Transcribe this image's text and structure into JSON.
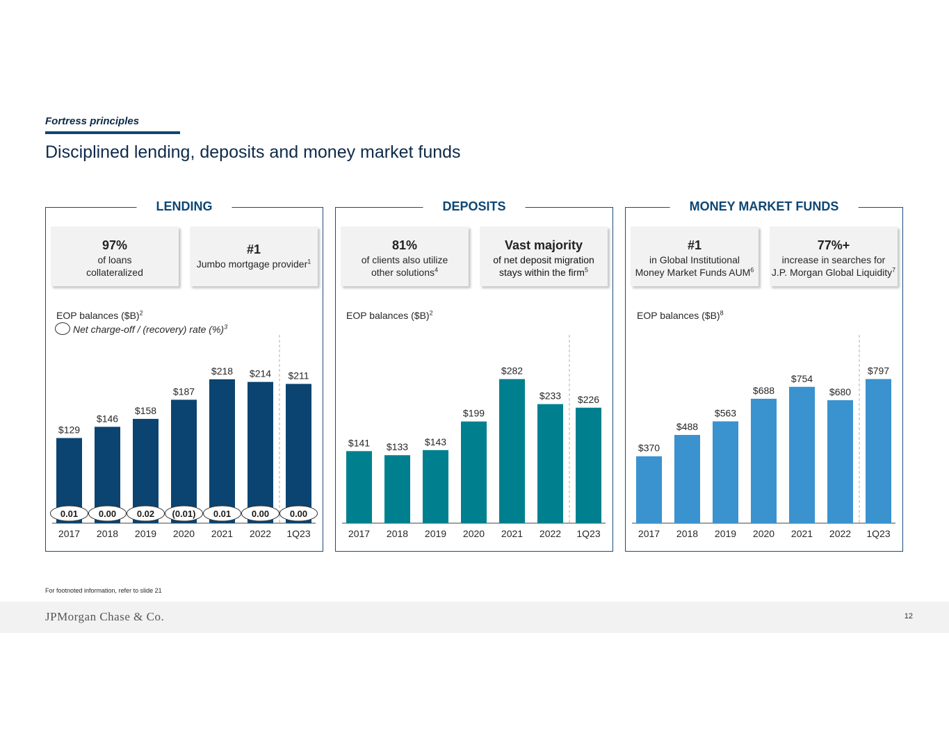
{
  "header": {
    "section": "Fortress principles",
    "title": "Disciplined lending, deposits and money market funds"
  },
  "panels": {
    "lending": {
      "title": "LENDING",
      "card1": {
        "big": "97%",
        "line1": "of loans",
        "line2": "collateralized"
      },
      "card2": {
        "big": "#1",
        "line1": "Jumbo mortgage provider",
        "sup": "1"
      },
      "eop_label": "EOP balances ($B)",
      "eop_sup": "2",
      "legend_label": "Net charge-off / (recovery) rate (%)",
      "legend_sup": "3"
    },
    "deposits": {
      "title": "DEPOSITS",
      "card1": {
        "big": "81%",
        "line1": "of clients also utilize",
        "line2": "other solutions",
        "sup": "4"
      },
      "card2": {
        "big": "Vast majority",
        "line1": "of net deposit migration",
        "line2": "stays within the firm",
        "sup": "5"
      },
      "eop_label": "EOP balances ($B)",
      "eop_sup": "2"
    },
    "mmf": {
      "title": "MONEY MARKET FUNDS",
      "card1": {
        "big": "#1",
        "line1": "in Global Institutional",
        "line2": "Money Market Funds AUM",
        "sup": "6"
      },
      "card2": {
        "big": "77%+",
        "line1": "increase in searches for",
        "line2": "J.P. Morgan Global Liquidity",
        "sup": "7"
      },
      "eop_label": "EOP balances ($B)",
      "eop_sup": "8"
    }
  },
  "chart_data": [
    {
      "type": "bar",
      "name": "lending",
      "categories": [
        "2017",
        "2018",
        "2019",
        "2020",
        "2021",
        "2022",
        "1Q23"
      ],
      "values": [
        129,
        146,
        158,
        187,
        218,
        214,
        211
      ],
      "value_labels": [
        "$129",
        "$146",
        "$158",
        "$187",
        "$218",
        "$214",
        "$211"
      ],
      "secondary_labels": [
        "0.01",
        "0.00",
        "0.02",
        "(0.01)",
        "0.01",
        "0.00",
        "0.00"
      ],
      "ylabel": "EOP balances ($B)",
      "ylim": [
        0,
        240
      ],
      "color": "#0b4470"
    },
    {
      "type": "bar",
      "name": "deposits",
      "categories": [
        "2017",
        "2018",
        "2019",
        "2020",
        "2021",
        "2022",
        "1Q23"
      ],
      "values": [
        141,
        133,
        143,
        199,
        282,
        233,
        226
      ],
      "value_labels": [
        "$141",
        "$133",
        "$143",
        "$199",
        "$282",
        "$233",
        "$226"
      ],
      "ylabel": "EOP balances ($B)",
      "ylim": [
        0,
        310
      ],
      "color": "#00808f"
    },
    {
      "type": "bar",
      "name": "mmf",
      "categories": [
        "2017",
        "2018",
        "2019",
        "2020",
        "2021",
        "2022",
        "1Q23"
      ],
      "values": [
        370,
        488,
        563,
        688,
        754,
        680,
        797
      ],
      "value_labels": [
        "$370",
        "$488",
        "$563",
        "$688",
        "$754",
        "$680",
        "$797"
      ],
      "ylabel": "EOP balances ($B)",
      "ylim": [
        0,
        876
      ],
      "color": "#3a92cf"
    }
  ],
  "footer": {
    "footnote": "For footnoted information, refer to slide 21",
    "logo": "JPMorgan Chase & Co.",
    "page_number": "12"
  }
}
